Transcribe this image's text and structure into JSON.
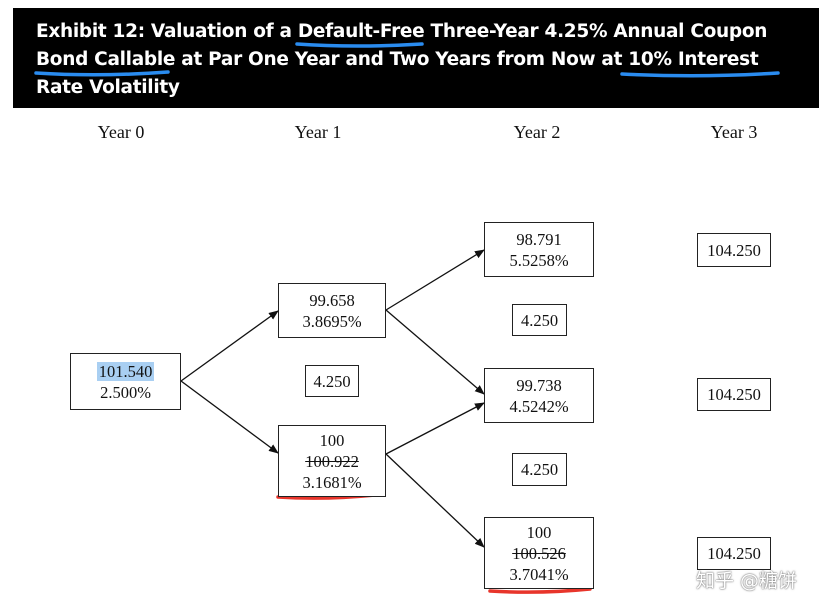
{
  "title": {
    "prefix": "Exhibit 12: Valuation of a ",
    "hl1": "Default-Free",
    "mid1": " Three-Year 4.25% Annual Coupon ",
    "hl2": "Bond Callable",
    "mid2": " at Par One Year and Two Years from Now at ",
    "hl3": "10% Interest Rate",
    "suffix": " Volatility"
  },
  "columns": [
    "Year 0",
    "Year 1",
    "Year 2",
    "Year 3"
  ],
  "nodes": {
    "y0": {
      "value": "101.540",
      "rate": "2.500%"
    },
    "y1_up": {
      "value": "99.658",
      "rate": "3.8695%"
    },
    "y1_cpn": {
      "value": "4.250"
    },
    "y1_down": {
      "value": "100",
      "struck": "100.922",
      "rate": "3.1681%"
    },
    "y2_up": {
      "value": "98.791",
      "rate": "5.5258%"
    },
    "y2_cpn1": {
      "value": "4.250"
    },
    "y2_mid": {
      "value": "99.738",
      "rate": "4.5242%"
    },
    "y2_cpn2": {
      "value": "4.250"
    },
    "y2_down": {
      "value": "100",
      "struck": "100.526",
      "rate": "3.7041%"
    },
    "y3_up": {
      "value": "104.250"
    },
    "y3_mid": {
      "value": "104.250"
    },
    "y3_down": {
      "value": "104.250"
    }
  },
  "watermark": "知乎 @糖饼",
  "colors": {
    "header_bg": "#000000",
    "underline_blue": "#2a8cf0",
    "underline_red": "#e8352b",
    "highlight": "#a9cff2"
  }
}
